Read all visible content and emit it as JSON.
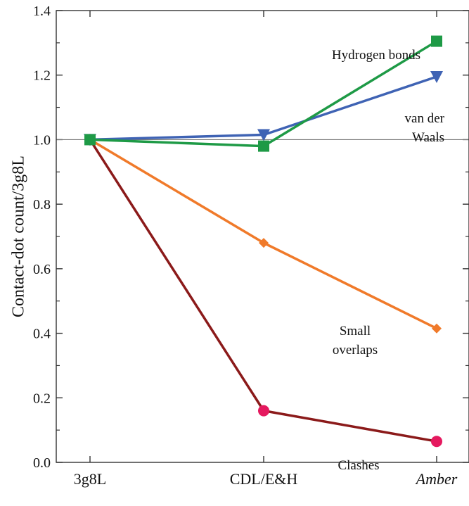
{
  "chart_data": {
    "type": "line",
    "title": "",
    "xlabel": "",
    "ylabel": "Contact-dot count/3g8L",
    "categories": [
      "3g8L",
      "CDL/E&H",
      "Amber"
    ],
    "category_italic": [
      false,
      false,
      true
    ],
    "ylim": [
      0,
      1.4
    ],
    "yticks": [
      0.0,
      0.2,
      0.4,
      0.6,
      0.8,
      1.0,
      1.2,
      1.4
    ],
    "ytick_labels": [
      "0.0",
      "0.2",
      "0.4",
      "0.6",
      "0.8",
      "1.0",
      "1.2",
      "1.4"
    ],
    "reference_line": 1.0,
    "grid": false,
    "legend": "none",
    "series": [
      {
        "name": "Hydrogen bonds",
        "values": [
          1.0,
          0.98,
          1.305
        ],
        "color": "#1e9a46",
        "marker": "square"
      },
      {
        "name": "van der Waals",
        "values": [
          1.0,
          1.015,
          1.195
        ],
        "color": "#3f63b4",
        "marker": "triangle-down"
      },
      {
        "name": "Small overlaps",
        "values": [
          1.0,
          0.68,
          0.415
        ],
        "color": "#f07a2a",
        "marker": "diamond"
      },
      {
        "name": "Clashes",
        "values": [
          1.0,
          0.16,
          0.065
        ],
        "color": "#e5195f",
        "line_color": "#8b1a1a",
        "marker": "circle"
      }
    ],
    "annotations": [
      {
        "series": "Hydrogen bonds",
        "lines": [
          "Hydrogen bonds"
        ]
      },
      {
        "series": "van der Waals",
        "lines": [
          "van der",
          "Waals"
        ]
      },
      {
        "series": "Small overlaps",
        "lines": [
          "Small",
          "overlaps"
        ]
      },
      {
        "series": "Clashes",
        "lines": [
          "Clashes"
        ]
      }
    ]
  }
}
